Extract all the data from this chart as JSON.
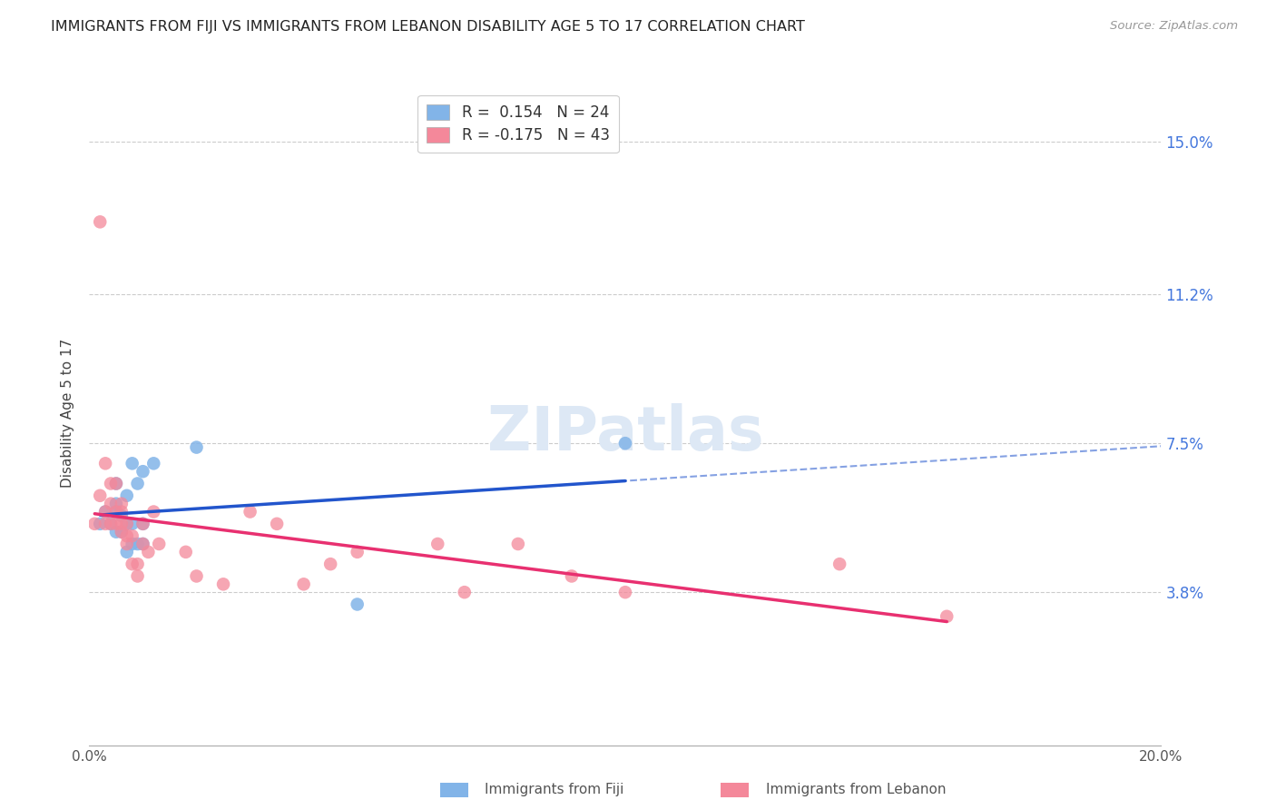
{
  "title": "IMMIGRANTS FROM FIJI VS IMMIGRANTS FROM LEBANON DISABILITY AGE 5 TO 17 CORRELATION CHART",
  "source": "Source: ZipAtlas.com",
  "ylabel": "Disability Age 5 to 17",
  "ytick_labels": [
    "15.0%",
    "11.2%",
    "7.5%",
    "3.8%"
  ],
  "ytick_values": [
    0.15,
    0.112,
    0.075,
    0.038
  ],
  "xlim": [
    0.0,
    0.2
  ],
  "ylim": [
    0.0,
    0.165
  ],
  "fiji_R": 0.154,
  "fiji_N": 24,
  "lebanon_R": -0.175,
  "lebanon_N": 43,
  "fiji_color": "#82b4e8",
  "lebanon_color": "#f4889a",
  "fiji_line_color": "#2255cc",
  "lebanon_line_color": "#e83070",
  "watermark": "ZIPatlas",
  "fiji_points_x": [
    0.002,
    0.003,
    0.004,
    0.005,
    0.005,
    0.005,
    0.005,
    0.006,
    0.006,
    0.007,
    0.007,
    0.007,
    0.008,
    0.008,
    0.008,
    0.009,
    0.009,
    0.01,
    0.01,
    0.01,
    0.012,
    0.02,
    0.05,
    0.1
  ],
  "fiji_points_y": [
    0.055,
    0.058,
    0.055,
    0.053,
    0.058,
    0.06,
    0.065,
    0.053,
    0.057,
    0.048,
    0.055,
    0.062,
    0.05,
    0.055,
    0.07,
    0.05,
    0.065,
    0.05,
    0.055,
    0.068,
    0.07,
    0.074,
    0.035,
    0.075
  ],
  "lebanon_points_x": [
    0.001,
    0.002,
    0.002,
    0.003,
    0.003,
    0.003,
    0.004,
    0.004,
    0.004,
    0.005,
    0.005,
    0.005,
    0.006,
    0.006,
    0.006,
    0.006,
    0.007,
    0.007,
    0.007,
    0.008,
    0.008,
    0.009,
    0.009,
    0.01,
    0.01,
    0.011,
    0.012,
    0.013,
    0.018,
    0.02,
    0.025,
    0.03,
    0.035,
    0.04,
    0.045,
    0.05,
    0.065,
    0.07,
    0.08,
    0.09,
    0.1,
    0.14,
    0.16
  ],
  "lebanon_points_y": [
    0.055,
    0.13,
    0.062,
    0.058,
    0.07,
    0.055,
    0.06,
    0.065,
    0.055,
    0.055,
    0.058,
    0.065,
    0.053,
    0.055,
    0.058,
    0.06,
    0.05,
    0.052,
    0.055,
    0.045,
    0.052,
    0.042,
    0.045,
    0.05,
    0.055,
    0.048,
    0.058,
    0.05,
    0.048,
    0.042,
    0.04,
    0.058,
    0.055,
    0.04,
    0.045,
    0.048,
    0.05,
    0.038,
    0.05,
    0.042,
    0.038,
    0.045,
    0.032
  ]
}
